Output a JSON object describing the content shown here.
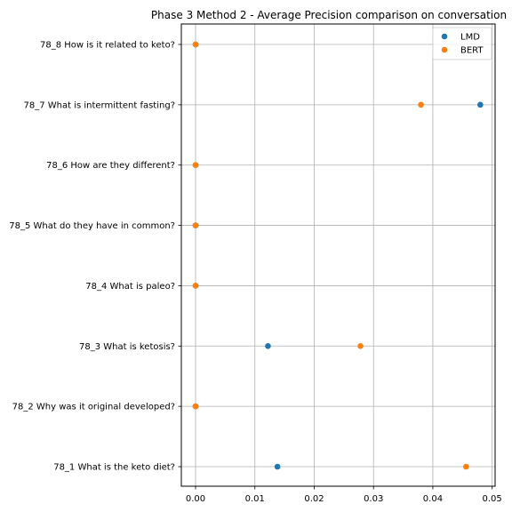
{
  "chart_data": {
    "type": "scatter",
    "title": "Phase 3 Method 2 - Average Precision comparison on conversation",
    "xlabel": "",
    "ylabel": "",
    "categories": [
      "78_1 What is the keto diet?",
      "78_2 Why was it original developed?",
      "78_3 What is ketosis?",
      "78_4 What is paleo?",
      "78_5 What do they have in common?",
      "78_6 How are they different?",
      "78_7 What is intermittent fasting?",
      "78_8 How is it related to keto?"
    ],
    "series": [
      {
        "name": "LMD",
        "color": "#1f77b4",
        "values": [
          0.0138,
          0.0,
          0.0122,
          0.0,
          0.0,
          0.0,
          0.048,
          0.0
        ]
      },
      {
        "name": "BERT",
        "color": "#ff7f0e",
        "values": [
          0.0456,
          0.0,
          0.0278,
          0.0,
          0.0,
          0.0,
          0.038,
          0.0
        ]
      }
    ],
    "xlim": [
      -0.0024,
      0.0505
    ],
    "xticks": [
      "0.00",
      "0.01",
      "0.02",
      "0.03",
      "0.04",
      "0.05"
    ],
    "xtick_values": [
      0,
      0.01,
      0.02,
      0.03,
      0.04,
      0.05
    ],
    "grid": true,
    "legend_position": "top-right"
  }
}
